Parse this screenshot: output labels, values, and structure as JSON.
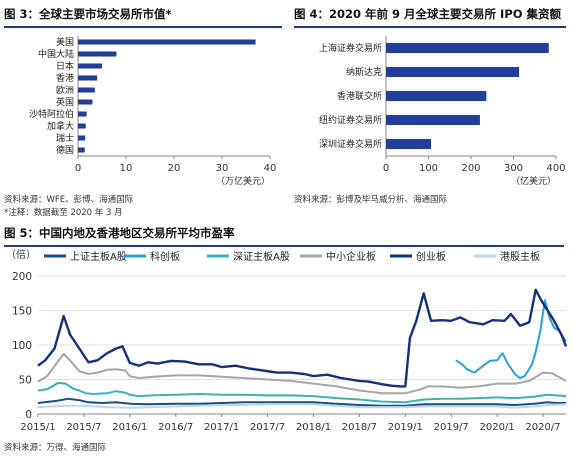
{
  "figure3": {
    "label": "图 3：",
    "title": "全球主要市场交易所市值*",
    "source": "资料来源：WFE、彭博、海通国际",
    "note": "*注释：数据截至 2020 年 3 月",
    "unit": "（万亿美元）"
  },
  "figure4": {
    "label": "图 4：",
    "title": "2020 年前 9 月全球主要交易所 IPO 集资额",
    "source": "资料来源：彭博及毕马威分析、海通国际",
    "unit": "（亿美元）"
  },
  "figure5": {
    "label": "图 5：",
    "title": "中国内地及香港地区交易所平均市盈率",
    "source": "资料来源：万得、海通国际",
    "unit": "（倍）"
  },
  "colors": {
    "bar": "#1f3f99",
    "title_rule": "#1f3b73",
    "s_main": "#1a4f86",
    "s_star": "#2aa0d6",
    "s_szmain": "#3bb0b8",
    "s_sme": "#a6a6a6",
    "s_chinext": "#16307a",
    "s_hk": "#b9d9ee"
  },
  "chart_data": [
    {
      "type": "bar",
      "orientation": "horizontal",
      "categories": [
        "美国",
        "中国大陆",
        "日本",
        "香港",
        "欧洲",
        "英国",
        "沙特阿拉伯",
        "加拿大",
        "瑞士",
        "德国"
      ],
      "values": [
        37,
        8,
        5,
        4,
        3.5,
        3,
        1.8,
        1.6,
        1.5,
        1.4
      ],
      "xlim": [
        0,
        40
      ],
      "xticks": [
        "0",
        "10",
        "20",
        "30",
        "40"
      ],
      "xlabel": "（万亿美元）"
    },
    {
      "type": "bar",
      "orientation": "horizontal",
      "categories": [
        "上海证券交易所",
        "纳斯达克",
        "香港联交所",
        "纽约证券交易所",
        "深圳证券交易所"
      ],
      "values": [
        383,
        313,
        236,
        221,
        106
      ],
      "xlim": [
        0,
        400
      ],
      "xticks": [
        "0",
        "100",
        "200",
        "300",
        "400"
      ],
      "xlabel": "（亿美元）"
    },
    {
      "type": "line",
      "ylabel": "（倍）",
      "ylim": [
        0,
        200
      ],
      "yticks": [
        "0",
        "50",
        "100",
        "150",
        "200"
      ],
      "xlim": [
        2015.0,
        2020.75
      ],
      "xticks": [
        {
          "label": "2015/1",
          "x": 2015.0
        },
        {
          "label": "2015/7",
          "x": 2015.5
        },
        {
          "label": "2016/1",
          "x": 2016.0
        },
        {
          "label": "2016/7",
          "x": 2016.5
        },
        {
          "label": "2017/1",
          "x": 2017.0
        },
        {
          "label": "2017/7",
          "x": 2017.5
        },
        {
          "label": "2018/1",
          "x": 2018.0
        },
        {
          "label": "2018/7",
          "x": 2018.5
        },
        {
          "label": "2019/1",
          "x": 2019.0
        },
        {
          "label": "2019/7",
          "x": 2019.5
        },
        {
          "label": "2020/1",
          "x": 2020.0
        },
        {
          "label": "2020/7",
          "x": 2020.5
        }
      ],
      "series": [
        {
          "name": "上证主板A股",
          "color": "#1a4f86",
          "width": 2,
          "points": [
            [
              2015.0,
              16
            ],
            [
              2015.2,
              19
            ],
            [
              2015.33,
              22
            ],
            [
              2015.45,
              20
            ],
            [
              2015.55,
              17
            ],
            [
              2015.7,
              16
            ],
            [
              2015.85,
              17
            ],
            [
              2016.0,
              15
            ],
            [
              2016.2,
              14
            ],
            [
              2016.5,
              15
            ],
            [
              2016.75,
              15
            ],
            [
              2017.0,
              16
            ],
            [
              2017.25,
              17
            ],
            [
              2017.5,
              17
            ],
            [
              2017.75,
              17
            ],
            [
              2018.0,
              17
            ],
            [
              2018.25,
              15
            ],
            [
              2018.5,
              13
            ],
            [
              2018.75,
              12
            ],
            [
              2019.0,
              12
            ],
            [
              2019.2,
              14
            ],
            [
              2019.4,
              14
            ],
            [
              2019.6,
              14
            ],
            [
              2019.8,
              14
            ],
            [
              2020.0,
              14
            ],
            [
              2020.2,
              13
            ],
            [
              2020.4,
              15
            ],
            [
              2020.55,
              17
            ],
            [
              2020.65,
              16
            ],
            [
              2020.75,
              16
            ]
          ]
        },
        {
          "name": "科创板",
          "color": "#2aa0d6",
          "width": 2,
          "points": [
            [
              2019.55,
              78
            ],
            [
              2019.62,
              72
            ],
            [
              2019.67,
              65
            ],
            [
              2019.75,
              60
            ],
            [
              2019.83,
              68
            ],
            [
              2019.92,
              77
            ],
            [
              2020.0,
              78
            ],
            [
              2020.06,
              88
            ],
            [
              2020.12,
              72
            ],
            [
              2020.2,
              57
            ],
            [
              2020.25,
              52
            ],
            [
              2020.3,
              55
            ],
            [
              2020.38,
              72
            ],
            [
              2020.42,
              90
            ],
            [
              2020.47,
              120
            ],
            [
              2020.52,
              165
            ],
            [
              2020.57,
              140
            ],
            [
              2020.62,
              125
            ],
            [
              2020.68,
              120
            ],
            [
              2020.75,
              105
            ]
          ]
        },
        {
          "name": "深证主板A股",
          "color": "#3bb0b8",
          "width": 2,
          "points": [
            [
              2015.0,
              34
            ],
            [
              2015.1,
              36
            ],
            [
              2015.22,
              45
            ],
            [
              2015.3,
              44
            ],
            [
              2015.38,
              37
            ],
            [
              2015.45,
              34
            ],
            [
              2015.52,
              30
            ],
            [
              2015.6,
              29
            ],
            [
              2015.75,
              30
            ],
            [
              2015.85,
              33
            ],
            [
              2015.95,
              31
            ],
            [
              2016.0,
              28
            ],
            [
              2016.1,
              26
            ],
            [
              2016.25,
              27
            ],
            [
              2016.5,
              28
            ],
            [
              2016.75,
              29
            ],
            [
              2017.0,
              28
            ],
            [
              2017.25,
              28
            ],
            [
              2017.5,
              27
            ],
            [
              2017.75,
              27
            ],
            [
              2018.0,
              26
            ],
            [
              2018.25,
              23
            ],
            [
              2018.5,
              21
            ],
            [
              2018.75,
              18
            ],
            [
              2019.0,
              17
            ],
            [
              2019.2,
              21
            ],
            [
              2019.4,
              22
            ],
            [
              2019.6,
              22
            ],
            [
              2019.8,
              23
            ],
            [
              2020.0,
              24
            ],
            [
              2020.2,
              23
            ],
            [
              2020.4,
              25
            ],
            [
              2020.55,
              28
            ],
            [
              2020.65,
              27
            ],
            [
              2020.75,
              26
            ]
          ]
        },
        {
          "name": "中小企业板",
          "color": "#a6a6a6",
          "width": 2,
          "points": [
            [
              2015.0,
              47
            ],
            [
              2015.1,
              55
            ],
            [
              2015.2,
              73
            ],
            [
              2015.28,
              87
            ],
            [
              2015.36,
              76
            ],
            [
              2015.45,
              62
            ],
            [
              2015.55,
              58
            ],
            [
              2015.65,
              60
            ],
            [
              2015.75,
              64
            ],
            [
              2015.85,
              65
            ],
            [
              2015.95,
              63
            ],
            [
              2016.0,
              55
            ],
            [
              2016.1,
              52
            ],
            [
              2016.25,
              54
            ],
            [
              2016.5,
              56
            ],
            [
              2016.75,
              56
            ],
            [
              2017.0,
              54
            ],
            [
              2017.25,
              52
            ],
            [
              2017.5,
              50
            ],
            [
              2017.75,
              48
            ],
            [
              2018.0,
              44
            ],
            [
              2018.25,
              40
            ],
            [
              2018.5,
              34
            ],
            [
              2018.75,
              30
            ],
            [
              2019.0,
              30
            ],
            [
              2019.15,
              35
            ],
            [
              2019.25,
              40
            ],
            [
              2019.4,
              40
            ],
            [
              2019.6,
              38
            ],
            [
              2019.8,
              40
            ],
            [
              2020.0,
              44
            ],
            [
              2020.2,
              44
            ],
            [
              2020.35,
              48
            ],
            [
              2020.5,
              60
            ],
            [
              2020.6,
              59
            ],
            [
              2020.75,
              48
            ]
          ]
        },
        {
          "name": "创业板",
          "color": "#16307a",
          "width": 2.4,
          "points": [
            [
              2015.0,
              70
            ],
            [
              2015.08,
              78
            ],
            [
              2015.18,
              95
            ],
            [
              2015.28,
              142
            ],
            [
              2015.35,
              115
            ],
            [
              2015.45,
              95
            ],
            [
              2015.55,
              75
            ],
            [
              2015.65,
              78
            ],
            [
              2015.75,
              88
            ],
            [
              2015.85,
              95
            ],
            [
              2015.92,
              98
            ],
            [
              2016.0,
              74
            ],
            [
              2016.1,
              70
            ],
            [
              2016.2,
              75
            ],
            [
              2016.3,
              73
            ],
            [
              2016.45,
              77
            ],
            [
              2016.6,
              76
            ],
            [
              2016.75,
              72
            ],
            [
              2016.9,
              72
            ],
            [
              2017.0,
              68
            ],
            [
              2017.15,
              70
            ],
            [
              2017.3,
              66
            ],
            [
              2017.45,
              63
            ],
            [
              2017.6,
              60
            ],
            [
              2017.75,
              60
            ],
            [
              2017.9,
              58
            ],
            [
              2018.0,
              55
            ],
            [
              2018.15,
              57
            ],
            [
              2018.3,
              52
            ],
            [
              2018.5,
              48
            ],
            [
              2018.6,
              47
            ],
            [
              2018.75,
              43
            ],
            [
              2018.85,
              41
            ],
            [
              2018.95,
              40
            ],
            [
              2019.0,
              40
            ],
            [
              2019.05,
              110
            ],
            [
              2019.12,
              135
            ],
            [
              2019.2,
              175
            ],
            [
              2019.28,
              135
            ],
            [
              2019.4,
              136
            ],
            [
              2019.5,
              135
            ],
            [
              2019.6,
              140
            ],
            [
              2019.7,
              133
            ],
            [
              2019.85,
              130
            ],
            [
              2019.95,
              136
            ],
            [
              2020.08,
              135
            ],
            [
              2020.15,
              145
            ],
            [
              2020.25,
              128
            ],
            [
              2020.35,
              133
            ],
            [
              2020.42,
              180
            ],
            [
              2020.48,
              165
            ],
            [
              2020.55,
              150
            ],
            [
              2020.62,
              135
            ],
            [
              2020.7,
              115
            ],
            [
              2020.75,
              98
            ]
          ]
        },
        {
          "name": "港股主板",
          "color": "#b9d9ee",
          "width": 2,
          "points": [
            [
              2015.0,
              10
            ],
            [
              2015.3,
              12
            ],
            [
              2015.5,
              12
            ],
            [
              2015.75,
              10
            ],
            [
              2016.0,
              9
            ],
            [
              2016.25,
              10
            ],
            [
              2016.5,
              11
            ],
            [
              2016.75,
              12
            ],
            [
              2017.0,
              13
            ],
            [
              2017.25,
              13
            ],
            [
              2017.5,
              14
            ],
            [
              2017.75,
              14
            ],
            [
              2018.0,
              14
            ],
            [
              2018.25,
              12
            ],
            [
              2018.5,
              10
            ],
            [
              2018.75,
              10
            ],
            [
              2019.0,
              10
            ],
            [
              2019.25,
              11
            ],
            [
              2019.5,
              11
            ],
            [
              2019.75,
              11
            ],
            [
              2020.0,
              11
            ],
            [
              2020.2,
              9
            ],
            [
              2020.4,
              11
            ],
            [
              2020.55,
              13
            ],
            [
              2020.75,
              14
            ]
          ]
        }
      ]
    }
  ]
}
